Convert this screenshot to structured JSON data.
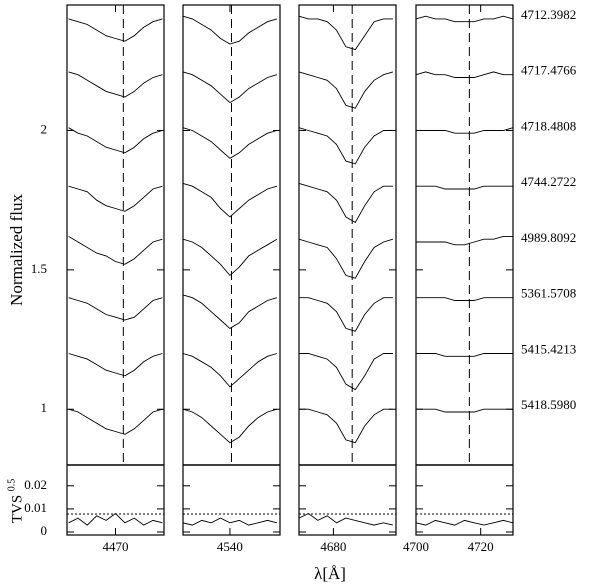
{
  "chart_data": {
    "type": "spectra",
    "color": "#000000",
    "ylabel": "Normalized flux",
    "xlabel": "λ[Å]",
    "tvs_label": "TVS",
    "tvs_exponent": "0.5",
    "ylim": [
      0.8,
      2.45
    ],
    "yticks": [
      1,
      1.5,
      2
    ],
    "tvs_ylim": [
      -0.0013,
      0.029
    ],
    "tvs_yticks": [
      0,
      0.01,
      0.02
    ],
    "panels": [
      {
        "xlim": [
          4454.5,
          4485.5
        ],
        "xticks": [
          4470
        ],
        "line": 4472.5,
        "x": [
          4455,
          4458,
          4461,
          4464,
          4467,
          4470,
          4473,
          4476,
          4479,
          4482,
          4485
        ],
        "series": [
          {
            "values": [
              2.4,
              2.39,
              2.38,
              2.36,
              2.34,
              2.33,
              2.32,
              2.34,
              2.37,
              2.39,
              2.4
            ]
          },
          {
            "values": [
              2.21,
              2.2,
              2.18,
              2.16,
              2.14,
              2.13,
              2.12,
              2.14,
              2.17,
              2.19,
              2.2
            ]
          },
          {
            "values": [
              2.01,
              1.99,
              1.98,
              1.96,
              1.94,
              1.93,
              1.92,
              1.94,
              1.97,
              1.99,
              2.0
            ]
          },
          {
            "values": [
              1.8,
              1.79,
              1.78,
              1.75,
              1.73,
              1.72,
              1.71,
              1.73,
              1.76,
              1.79,
              1.8
            ]
          },
          {
            "values": [
              1.62,
              1.6,
              1.58,
              1.56,
              1.55,
              1.53,
              1.52,
              1.54,
              1.57,
              1.6,
              1.61
            ]
          },
          {
            "values": [
              1.4,
              1.39,
              1.38,
              1.36,
              1.34,
              1.33,
              1.32,
              1.33,
              1.36,
              1.39,
              1.4
            ]
          },
          {
            "values": [
              1.2,
              1.19,
              1.18,
              1.16,
              1.14,
              1.13,
              1.12,
              1.14,
              1.17,
              1.19,
              1.2
            ]
          },
          {
            "values": [
              1.0,
              0.99,
              0.97,
              0.95,
              0.93,
              0.92,
              0.91,
              0.93,
              0.96,
              0.99,
              1.0
            ]
          }
        ],
        "tvs": [
          0.004,
          0.006,
          0.003,
          0.007,
          0.005,
          0.008,
          0.004,
          0.006,
          0.003,
          0.005,
          0.004
        ],
        "tvs_threshold": 0.0078
      },
      {
        "xlim": [
          4525,
          4556
        ],
        "xticks": [
          4540
        ],
        "line": 4540.5,
        "x": [
          4525,
          4528,
          4531,
          4534,
          4537,
          4540,
          4543,
          4546,
          4549,
          4552,
          4555
        ],
        "series": [
          {
            "values": [
              2.41,
              2.4,
              2.38,
              2.36,
              2.33,
              2.31,
              2.32,
              2.35,
              2.37,
              2.39,
              2.4
            ]
          },
          {
            "values": [
              2.21,
              2.2,
              2.18,
              2.16,
              2.13,
              2.1,
              2.12,
              2.15,
              2.17,
              2.19,
              2.2
            ]
          },
          {
            "values": [
              2.01,
              2.0,
              1.98,
              1.96,
              1.93,
              1.9,
              1.92,
              1.95,
              1.97,
              1.99,
              2.0
            ]
          },
          {
            "values": [
              1.81,
              1.8,
              1.78,
              1.76,
              1.72,
              1.69,
              1.72,
              1.75,
              1.77,
              1.79,
              1.8
            ]
          },
          {
            "values": [
              1.61,
              1.6,
              1.58,
              1.55,
              1.52,
              1.48,
              1.51,
              1.55,
              1.57,
              1.59,
              1.61
            ]
          },
          {
            "values": [
              1.41,
              1.4,
              1.38,
              1.35,
              1.32,
              1.29,
              1.31,
              1.35,
              1.37,
              1.39,
              1.4
            ]
          },
          {
            "values": [
              1.2,
              1.19,
              1.17,
              1.15,
              1.12,
              1.08,
              1.11,
              1.14,
              1.17,
              1.19,
              1.2
            ]
          },
          {
            "values": [
              1.0,
              0.99,
              0.97,
              0.94,
              0.91,
              0.88,
              0.9,
              0.94,
              0.97,
              0.99,
              1.0
            ]
          }
        ],
        "tvs": [
          0.004,
          0.003,
          0.005,
          0.004,
          0.006,
          0.004,
          0.005,
          0.003,
          0.004,
          0.005,
          0.004
        ],
        "tvs_threshold": 0.0078
      },
      {
        "xlim": [
          4669,
          4700
        ],
        "xticks": [
          4680
        ],
        "line": 4686,
        "x": [
          4669,
          4672,
          4675,
          4678,
          4681,
          4684,
          4687,
          4690,
          4693,
          4696,
          4699
        ],
        "series": [
          {
            "values": [
              2.41,
              2.4,
              2.4,
              2.39,
              2.36,
              2.3,
              2.29,
              2.34,
              2.39,
              2.4,
              2.4
            ]
          },
          {
            "values": [
              2.21,
              2.2,
              2.19,
              2.18,
              2.15,
              2.09,
              2.08,
              2.14,
              2.18,
              2.2,
              2.21
            ]
          },
          {
            "values": [
              2.01,
              2.0,
              1.99,
              1.98,
              1.95,
              1.89,
              1.88,
              1.94,
              1.98,
              2.0,
              2.0
            ]
          },
          {
            "values": [
              1.81,
              1.8,
              1.79,
              1.78,
              1.75,
              1.69,
              1.67,
              1.73,
              1.78,
              1.8,
              1.8
            ]
          },
          {
            "values": [
              1.61,
              1.6,
              1.59,
              1.58,
              1.54,
              1.48,
              1.47,
              1.53,
              1.58,
              1.6,
              1.61
            ]
          },
          {
            "values": [
              1.4,
              1.4,
              1.39,
              1.38,
              1.35,
              1.29,
              1.28,
              1.34,
              1.38,
              1.4,
              1.4
            ]
          },
          {
            "values": [
              1.2,
              1.2,
              1.19,
              1.18,
              1.15,
              1.09,
              1.07,
              1.12,
              1.18,
              1.2,
              1.2
            ]
          },
          {
            "values": [
              1.0,
              1.0,
              0.99,
              0.98,
              0.95,
              0.89,
              0.88,
              0.94,
              0.98,
              1.0,
              1.0
            ]
          }
        ],
        "tvs": [
          0.006,
          0.008,
          0.005,
          0.007,
          0.004,
          0.006,
          0.005,
          0.004,
          0.003,
          0.004,
          0.003
        ],
        "tvs_threshold": 0.0078
      },
      {
        "xlim": [
          4700,
          4730
        ],
        "xticks": [
          4700,
          4720
        ],
        "line": 4716.5,
        "x": [
          4700,
          4703,
          4706,
          4709,
          4712,
          4715,
          4718,
          4721,
          4724,
          4727,
          4730
        ],
        "series": [
          {
            "name": "4712.3982",
            "values": [
              2.4,
              2.41,
              2.4,
              2.4,
              2.39,
              2.39,
              2.39,
              2.4,
              2.4,
              2.41,
              2.4
            ]
          },
          {
            "name": "4717.4766",
            "values": [
              2.2,
              2.21,
              2.2,
              2.2,
              2.19,
              2.19,
              2.19,
              2.2,
              2.21,
              2.2,
              2.2
            ]
          },
          {
            "name": "4718.4808",
            "values": [
              2.0,
              2.0,
              2.0,
              2.0,
              1.99,
              1.99,
              1.99,
              2.0,
              2.0,
              2.0,
              2.01
            ]
          },
          {
            "name": "4744.2722",
            "values": [
              1.8,
              1.8,
              1.8,
              1.79,
              1.79,
              1.79,
              1.79,
              1.8,
              1.8,
              1.8,
              1.8
            ]
          },
          {
            "name": "4989.8092",
            "values": [
              1.6,
              1.6,
              1.6,
              1.6,
              1.59,
              1.59,
              1.6,
              1.61,
              1.61,
              1.62,
              1.62
            ]
          },
          {
            "name": "5361.5708",
            "values": [
              1.4,
              1.4,
              1.4,
              1.4,
              1.39,
              1.39,
              1.39,
              1.4,
              1.4,
              1.4,
              1.4
            ]
          },
          {
            "name": "5415.4213",
            "values": [
              1.2,
              1.2,
              1.2,
              1.19,
              1.19,
              1.19,
              1.19,
              1.2,
              1.2,
              1.2,
              1.2
            ]
          },
          {
            "name": "5418.5980",
            "values": [
              1.0,
              1.0,
              1.0,
              0.99,
              0.99,
              0.99,
              0.99,
              1.0,
              1.0,
              1.0,
              1.0
            ]
          }
        ],
        "tvs": [
          0.004,
          0.003,
          0.005,
          0.004,
          0.003,
          0.005,
          0.004,
          0.003,
          0.004,
          0.005,
          0.004
        ],
        "tvs_threshold": 0.0078
      }
    ]
  }
}
